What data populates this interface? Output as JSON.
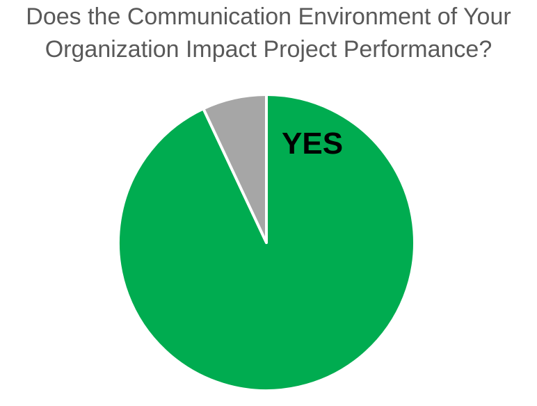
{
  "title": {
    "lines": [
      "Does the Communication Environment of Your",
      "Organization Impact Project Performance?"
    ],
    "color": "#595959"
  },
  "chart_data": {
    "type": "pie",
    "title": "Does the Communication Environment of Your Organization Impact Project Performance?",
    "slices": [
      {
        "label": "YES",
        "value": 93,
        "color": "#00AC50",
        "label_visible": true,
        "label_color": "#000000"
      },
      {
        "label": "",
        "value": 7,
        "color": "#A6A6A6",
        "label_visible": false
      }
    ],
    "unit": "percent",
    "start_angle_deg": 0,
    "direction": "clockwise",
    "slice_border_color": "#FFFFFF",
    "slice_border_width": 4,
    "legend": "none",
    "background": "#FFFFFF"
  }
}
